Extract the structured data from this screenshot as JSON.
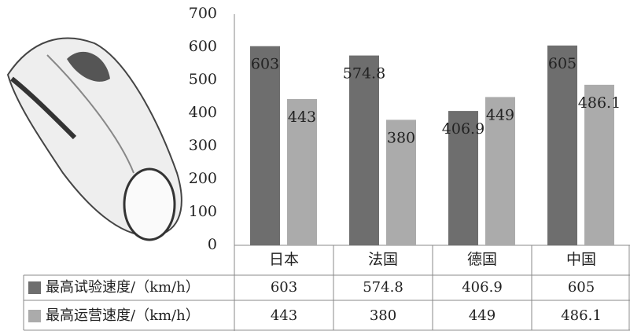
{
  "chart_data": {
    "type": "bar",
    "categories": [
      "日本",
      "法国",
      "德国",
      "中国"
    ],
    "series": [
      {
        "name": "最高试验速度/（km/h）",
        "color": "#6e6e6e",
        "values": [
          603,
          574.8,
          406.9,
          605
        ]
      },
      {
        "name": "最高运营速度/（km/h）",
        "color": "#ababab",
        "values": [
          443,
          380,
          449,
          486.1
        ]
      }
    ],
    "ylim": [
      0,
      700
    ],
    "yticks": [
      0,
      100,
      200,
      300,
      400,
      500,
      600,
      700
    ],
    "grid": false
  }
}
